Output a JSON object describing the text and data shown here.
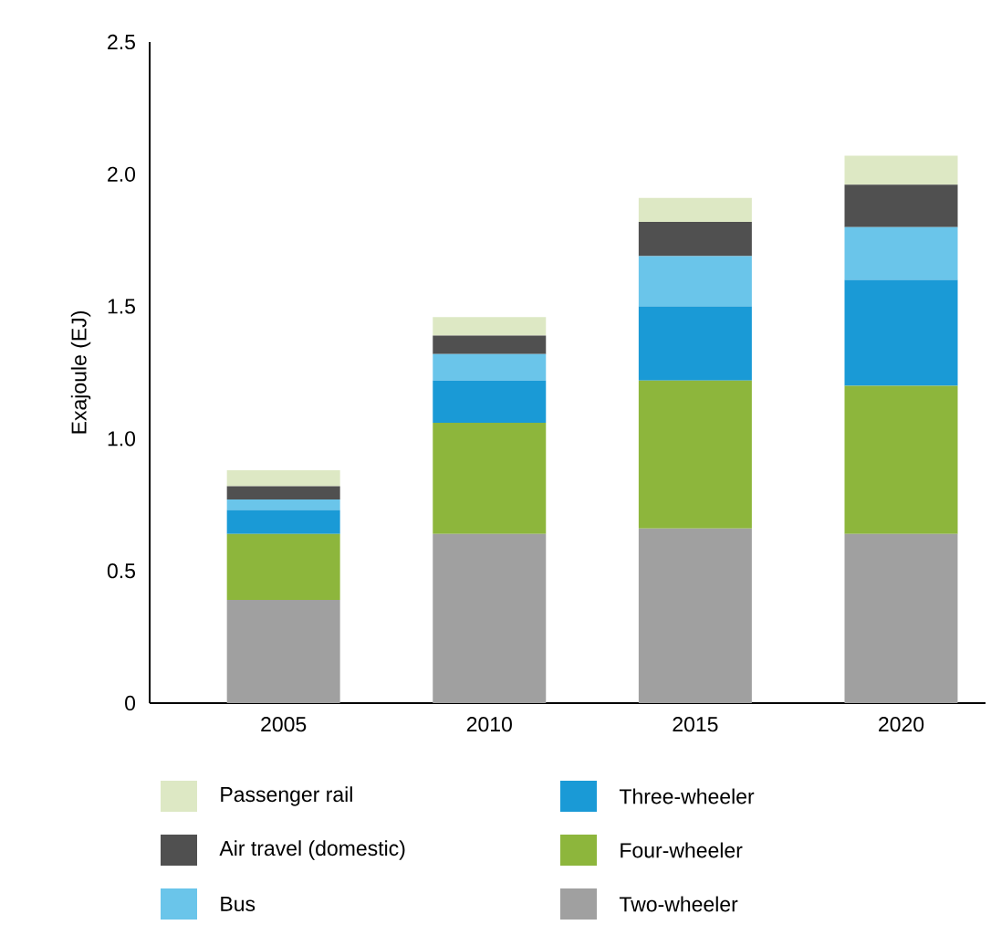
{
  "chart_data": {
    "type": "bar",
    "stacked": true,
    "ylabel": "Exajoule (EJ)",
    "categories": [
      "2005",
      "2010",
      "2015",
      "2020"
    ],
    "series": [
      {
        "name": "Two-wheeler",
        "color": "#a0a0a0",
        "values": [
          0.39,
          0.64,
          0.66,
          0.64
        ]
      },
      {
        "name": "Four-wheeler",
        "color": "#8db63c",
        "values": [
          0.25,
          0.42,
          0.56,
          0.56
        ]
      },
      {
        "name": "Three-wheeler",
        "color": "#1a9ad6",
        "values": [
          0.09,
          0.16,
          0.28,
          0.4
        ]
      },
      {
        "name": "Bus",
        "color": "#6ac5ea",
        "values": [
          0.04,
          0.1,
          0.19,
          0.2
        ]
      },
      {
        "name": "Air travel (domestic)",
        "color": "#505050",
        "values": [
          0.05,
          0.07,
          0.13,
          0.16
        ]
      },
      {
        "name": "Passenger rail",
        "color": "#dde8c4",
        "values": [
          0.06,
          0.07,
          0.09,
          0.11
        ]
      }
    ],
    "ylim": [
      0,
      2.5
    ],
    "yticks": [
      0,
      0.5,
      {
        "value": 1,
        "label": "1.0"
      },
      1.5,
      {
        "value": 2,
        "label": "2.0"
      },
      2.5
    ],
    "grid": false,
    "legend": "bottom"
  }
}
